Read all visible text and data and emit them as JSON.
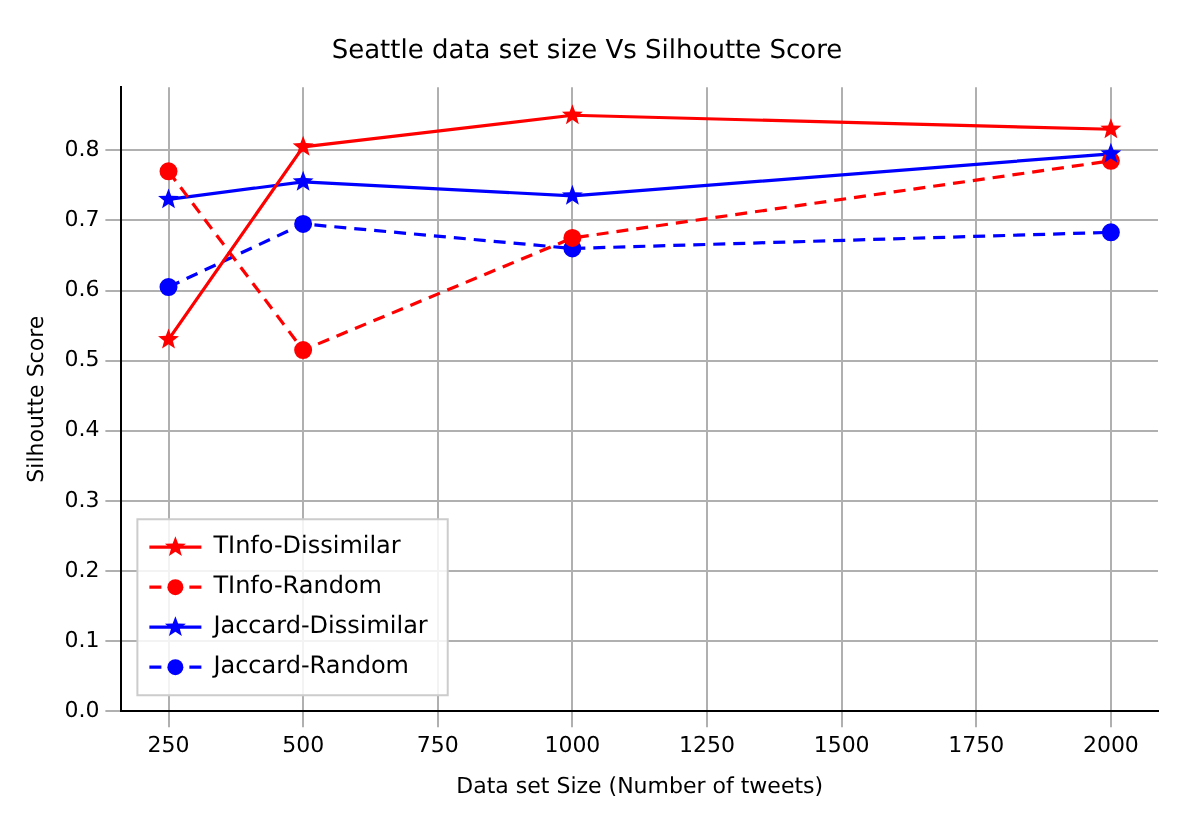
{
  "chart_data": {
    "type": "line",
    "title": "Seattle data set size Vs Silhoutte Score",
    "xlabel": "Data set Size (Number of tweets)",
    "ylabel": "Silhoutte Score",
    "x": [
      250,
      500,
      1000,
      2000
    ],
    "series": [
      {
        "name": "TInfo-Dissimilar",
        "color": "#ff0000",
        "values": [
          0.53,
          0.805,
          0.85,
          0.83
        ],
        "marker": "star",
        "line_style": "solid"
      },
      {
        "name": "TInfo-Random",
        "color": "#ff0000",
        "values": [
          0.77,
          0.515,
          0.675,
          0.785
        ],
        "marker": "circle",
        "line_style": "dashed"
      },
      {
        "name": "Jaccard-Dissimilar",
        "color": "#0000ff",
        "values": [
          0.73,
          0.755,
          0.735,
          0.795
        ],
        "marker": "star",
        "line_style": "solid"
      },
      {
        "name": "Jaccard-Random",
        "color": "#0000ff",
        "values": [
          0.605,
          0.695,
          0.66,
          0.683
        ],
        "marker": "circle",
        "line_style": "dashed"
      }
    ],
    "xlim": [
      162.5,
      2087.5
    ],
    "xticks": [
      250,
      500,
      750,
      1000,
      1250,
      1500,
      1750,
      2000
    ],
    "ylim": [
      0,
      0.89
    ],
    "yticks": [
      {
        "value": 0,
        "label": "0.0"
      },
      0.1,
      0.2,
      0.3,
      0.4,
      0.5,
      0.6,
      0.7,
      0.8
    ],
    "grid": true,
    "legend": "bottom left"
  }
}
